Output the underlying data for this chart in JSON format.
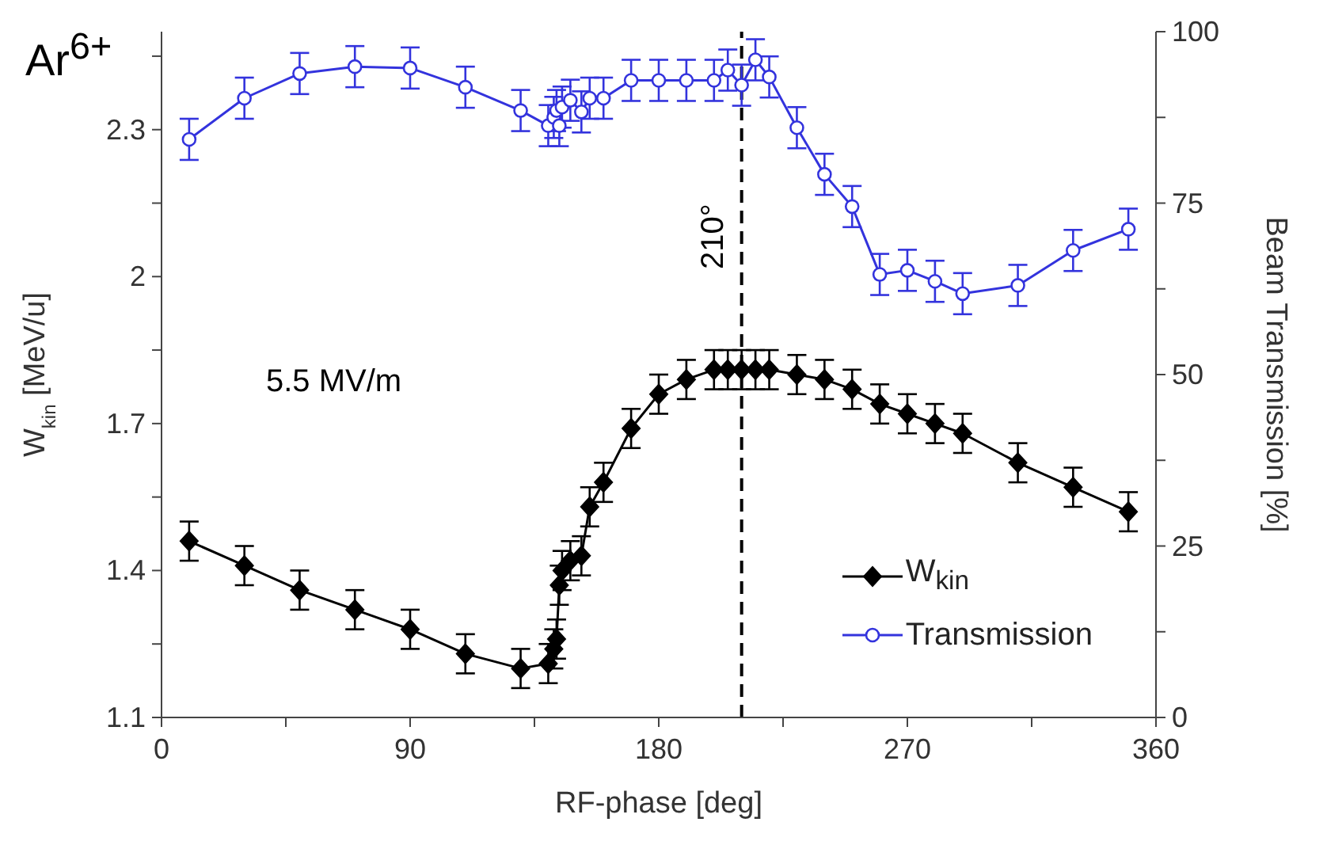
{
  "chart_data": {
    "type": "line",
    "title": "Ar$^{6+}$",
    "xlabel": "RF-phase [deg]",
    "ylabel": "W$_{kin}$ [MeV/u]",
    "y2label": "Beam Transmission [%]",
    "annotations": [
      "5.5 MV/m"
    ],
    "x": [
      10,
      30,
      50,
      70,
      90,
      110,
      130,
      140,
      142,
      143,
      144,
      145,
      148,
      152,
      155,
      160,
      170,
      180,
      190,
      200,
      205,
      210,
      215,
      220,
      230,
      240,
      250,
      260,
      270,
      280,
      290,
      310,
      330,
      350
    ],
    "series": [
      {
        "name": "W$_{kin}$",
        "color": "#000000",
        "marker": "diamond",
        "values": [
          1.46,
          1.41,
          1.36,
          1.32,
          1.28,
          1.23,
          1.2,
          1.21,
          1.24,
          1.26,
          1.37,
          1.4,
          1.42,
          1.43,
          1.53,
          1.58,
          1.69,
          1.76,
          1.79,
          1.81,
          1.81,
          1.81,
          1.81,
          1.81,
          1.8,
          1.79,
          1.77,
          1.74,
          1.72,
          1.7,
          1.68,
          1.62,
          1.57,
          1.52
        ],
        "errors": [
          0.04,
          0.04,
          0.04,
          0.04,
          0.04,
          0.04,
          0.04,
          0.04,
          0.04,
          0.04,
          0.04,
          0.04,
          0.04,
          0.04,
          0.04,
          0.04,
          0.04,
          0.04,
          0.04,
          0.04,
          0.04,
          0.04,
          0.04,
          0.04,
          0.04,
          0.04,
          0.04,
          0.04,
          0.04,
          0.04,
          0.04,
          0.04,
          0.04,
          0.04
        ]
      },
      {
        "name": "Transmission",
        "color": "#3333dd",
        "marker": "circle",
        "axis": "y2",
        "values": [
          84.3,
          90.3,
          93.9,
          94.9,
          94.7,
          91.9,
          88.5,
          86.3,
          87.5,
          88.5,
          86.3,
          89.0,
          90.0,
          88.3,
          90.3,
          90.3,
          92.9,
          92.9,
          92.9,
          92.9,
          94.4,
          92.2,
          95.9,
          93.4,
          86.0,
          79.2,
          74.5,
          64.6,
          65.2,
          63.6,
          61.8,
          63.0,
          68.1,
          71.2
        ],
        "errors": [
          3,
          3,
          3,
          3,
          3,
          3,
          3,
          3,
          3,
          3,
          3,
          3,
          3,
          3,
          3,
          3,
          3,
          3,
          3,
          3,
          3,
          3,
          3,
          3,
          3,
          3,
          3,
          3,
          3,
          3,
          3,
          3,
          3,
          3
        ]
      }
    ],
    "xlim": [
      0,
      360
    ],
    "xticks": [
      0,
      {
        "value": 45,
        "label": null
      },
      90,
      {
        "value": 135,
        "label": null
      },
      180,
      {
        "value": 225,
        "label": null
      },
      270,
      {
        "value": 315,
        "label": null
      },
      360
    ],
    "ylim": [
      1.1,
      2.5
    ],
    "yticks": [
      1.1,
      {
        "value": 1.25,
        "label": null
      },
      1.4,
      {
        "value": 1.55,
        "label": null
      },
      1.7,
      {
        "value": 1.85,
        "label": null
      },
      2,
      {
        "value": 2.15,
        "label": null
      },
      2.3,
      {
        "value": 2.45,
        "label": null
      }
    ],
    "y2lim": [
      0,
      100
    ],
    "y2ticks": [
      0,
      {
        "value": 12.5,
        "label": null
      },
      25,
      {
        "value": 37.5,
        "label": null
      },
      50,
      {
        "value": 62.5,
        "label": null
      },
      75,
      {
        "value": 87.5,
        "label": null
      },
      100
    ],
    "ref_lines": [
      {
        "axis": "x",
        "value": 210,
        "label": "210°",
        "line_style": "dashed",
        "color": "#000000"
      }
    ],
    "grid": false,
    "legend": "bottom right",
    "line_style": "solid"
  }
}
